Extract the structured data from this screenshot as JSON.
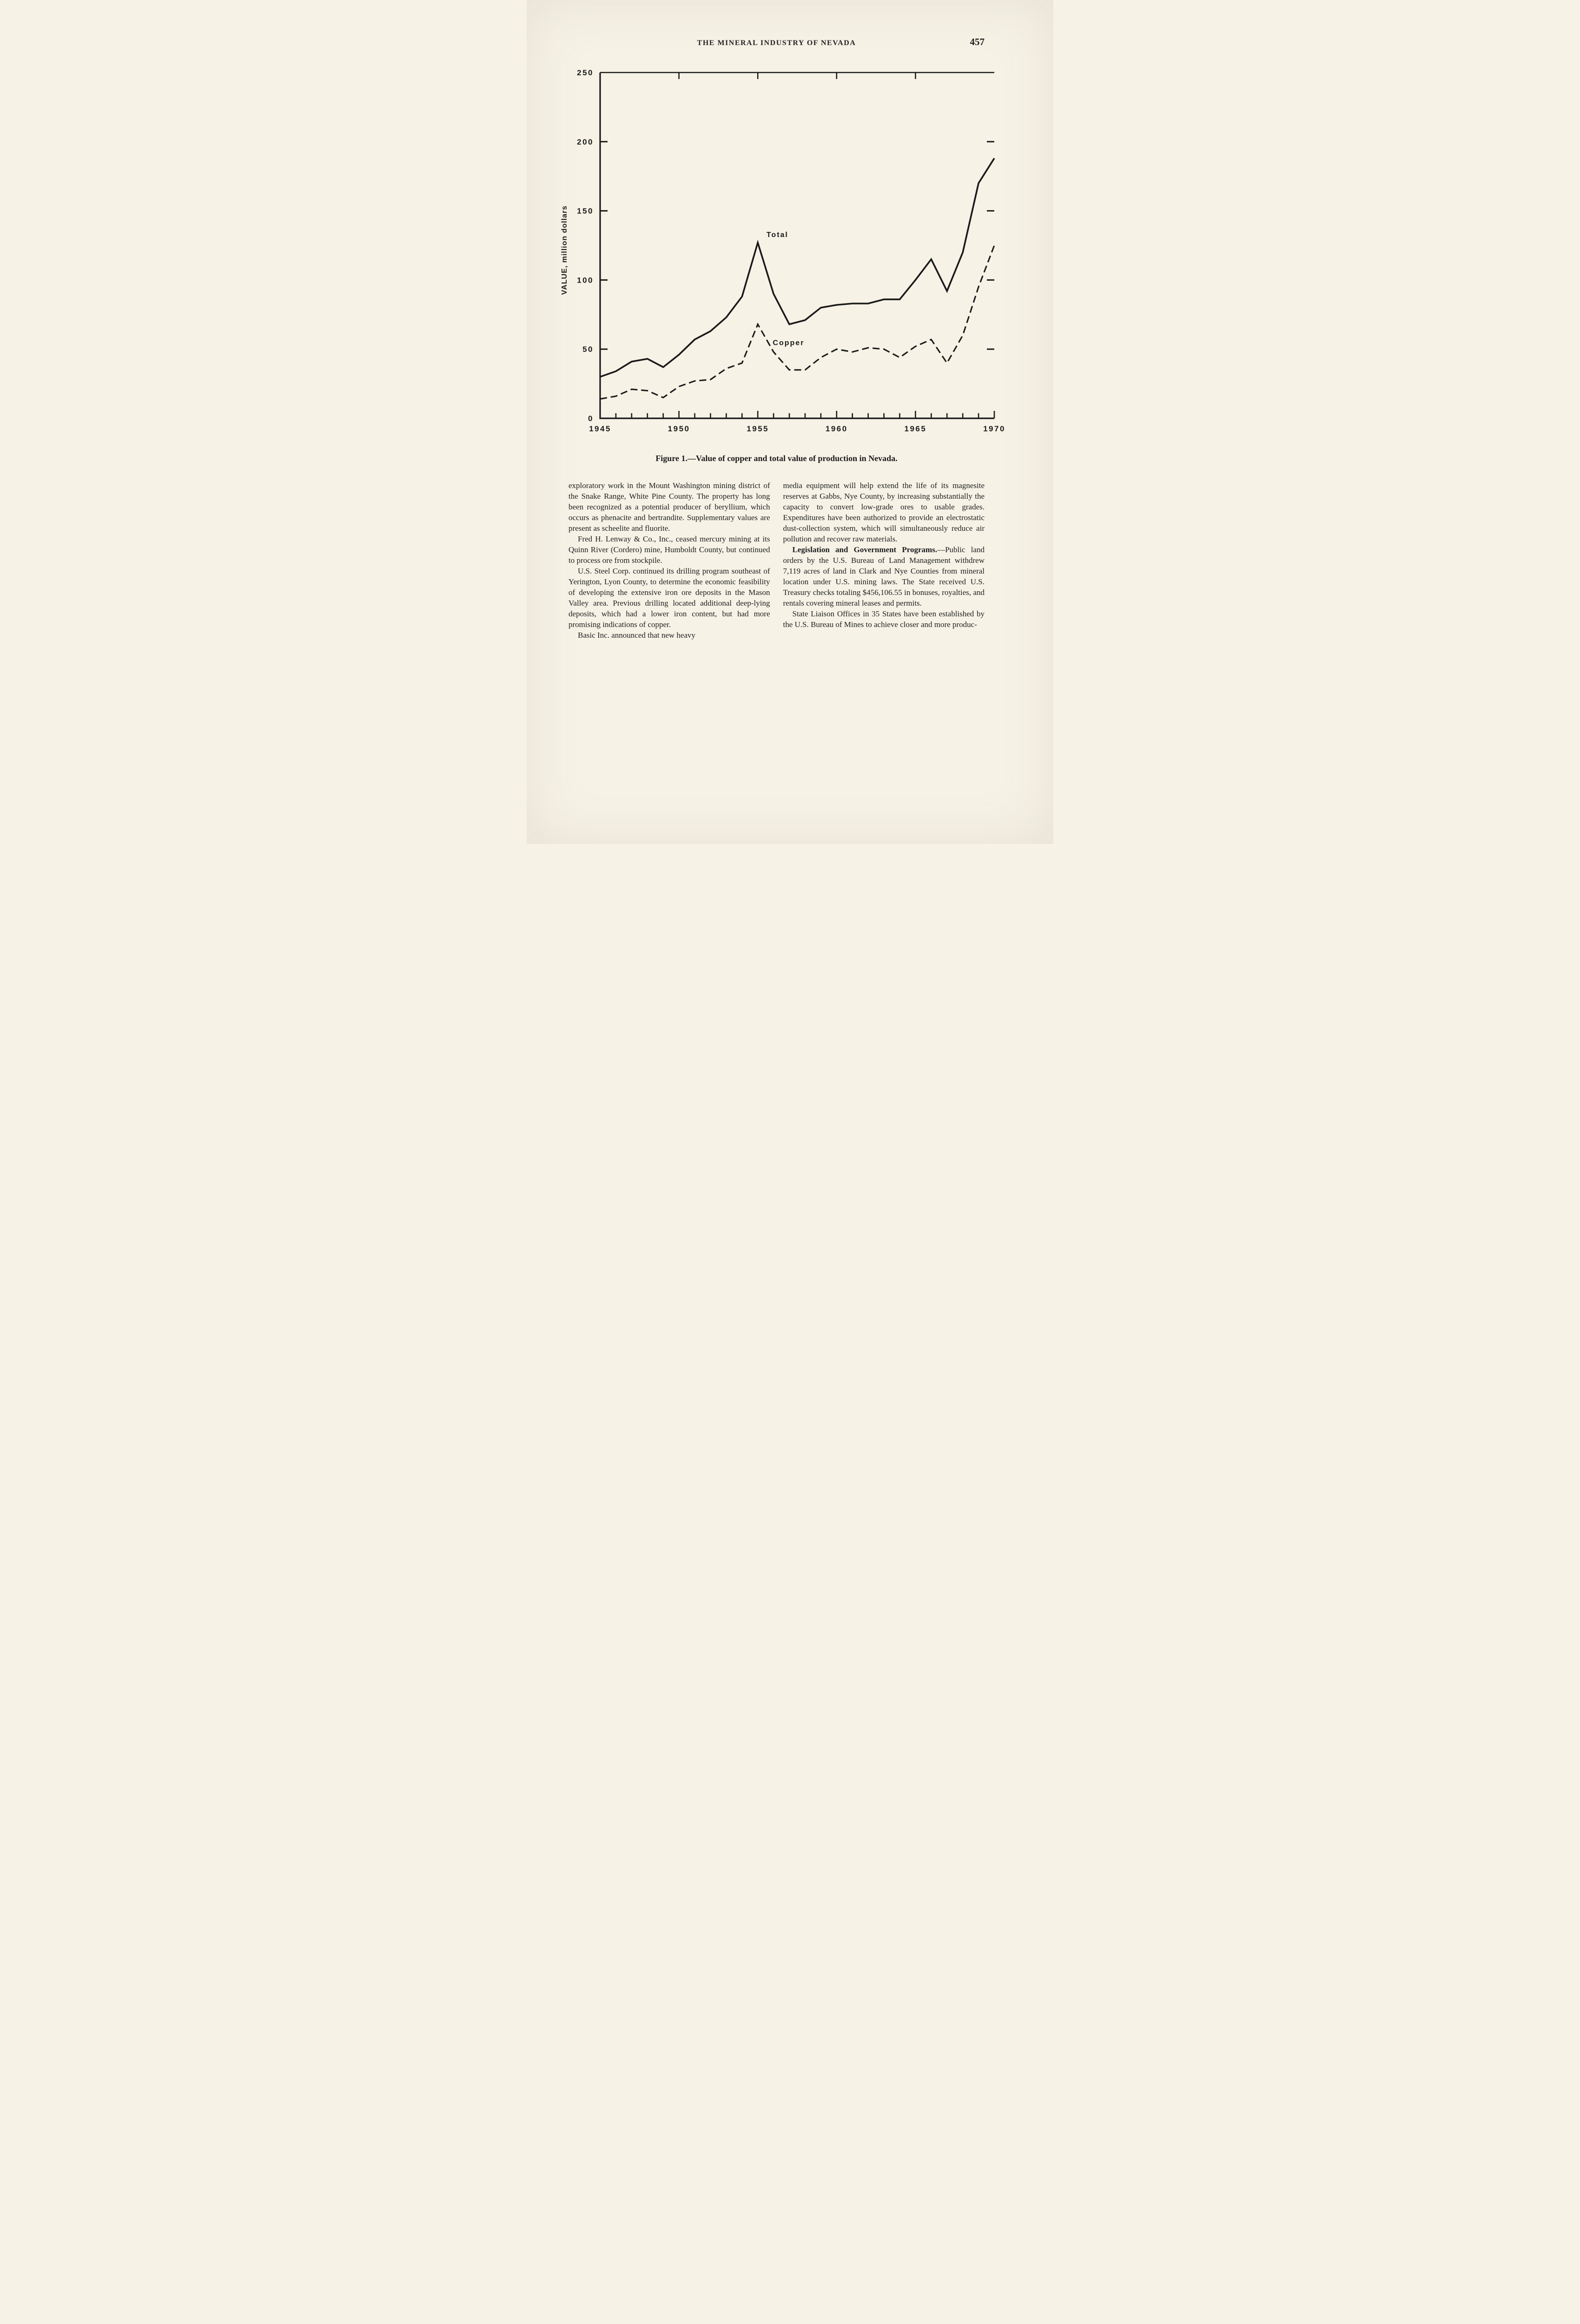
{
  "colors": {
    "paper": "#f6f2e6",
    "ink": "#1a1a1a"
  },
  "page": {
    "header": "THE MINERAL INDUSTRY OF NEVADA",
    "page_number": "457"
  },
  "figure": {
    "caption": "Figure 1.—Value of copper and total value of production in Nevada."
  },
  "chart_data": {
    "type": "line",
    "title": "",
    "xlabel": "",
    "ylabel": "VALUE, million dollars",
    "xlim": [
      1945,
      1970
    ],
    "ylim": [
      0,
      250
    ],
    "x_ticks": [
      1945,
      1950,
      1955,
      1960,
      1965,
      1970
    ],
    "y_ticks": [
      0,
      50,
      100,
      150,
      200,
      250
    ],
    "grid": false,
    "legend_position": "inline-annotations",
    "x": [
      1945,
      1946,
      1947,
      1948,
      1949,
      1950,
      1951,
      1952,
      1953,
      1954,
      1955,
      1956,
      1957,
      1958,
      1959,
      1960,
      1961,
      1962,
      1963,
      1964,
      1965,
      1966,
      1967,
      1968,
      1969,
      1970
    ],
    "series": [
      {
        "name": "Total",
        "style": "solid",
        "values": [
          30,
          34,
          41,
          43,
          37,
          46,
          57,
          63,
          73,
          88,
          127,
          90,
          68,
          71,
          80,
          82,
          83,
          83,
          86,
          86,
          100,
          115,
          92,
          120,
          170,
          188
        ]
      },
      {
        "name": "Copper",
        "style": "dashed",
        "values": [
          14,
          16,
          21,
          20,
          15,
          23,
          27,
          28,
          36,
          40,
          68,
          48,
          35,
          35,
          44,
          50,
          48,
          51,
          50,
          44,
          52,
          57,
          40,
          60,
          95,
          125
        ]
      }
    ],
    "annotations": [
      {
        "text": "Total",
        "x": 1955.55,
        "y": 131
      },
      {
        "text": "Copper",
        "x": 1955.95,
        "y": 53
      }
    ]
  },
  "body": {
    "left": [
      {
        "text": "exploratory work in the Mount Washington mining district of the Snake Range, White Pine County. The property has long been recognized as a potential producer of beryllium, which occurs as phenacite and bertrandite. Supplementary values are present as scheelite and fluorite."
      },
      {
        "text": "Fred H. Lenway & Co., Inc., ceased mercury mining at its Quinn River (Cordero) mine, Humboldt County, but continued to process ore from stockpile."
      },
      {
        "text": "U.S. Steel Corp. continued its drilling program southeast of Yerington, Lyon County, to determine the economic feasibility of developing the extensive iron ore deposits in the Mason Valley area. Previous drilling located additional deep-lying deposits, which had a lower iron content, but had more promising indications of copper."
      },
      {
        "text": "Basic Inc. announced that new heavy"
      }
    ],
    "right": [
      {
        "text": "media equipment will help extend the life of its magnesite reserves at Gabbs, Nye County, by increasing substantially the capacity to convert low-grade ores to usable grades. Expenditures have been authorized to provide an electrostatic dust-collection system, which will simultaneously reduce air pollution and recover raw materials."
      },
      {
        "lead": "Legislation and Government Programs.",
        "text": "—Public land orders by the U.S. Bureau of Land Management withdrew 7,119 acres of land in Clark and Nye Counties from mineral location under U.S. mining laws. The State received U.S. Treasury checks totaling $456,106.55 in bonuses, royalties, and rentals covering mineral leases and permits."
      },
      {
        "text": "State Liaison Offices in 35 States have been established by the U.S. Bureau of Mines to achieve closer and more produc-"
      }
    ]
  }
}
